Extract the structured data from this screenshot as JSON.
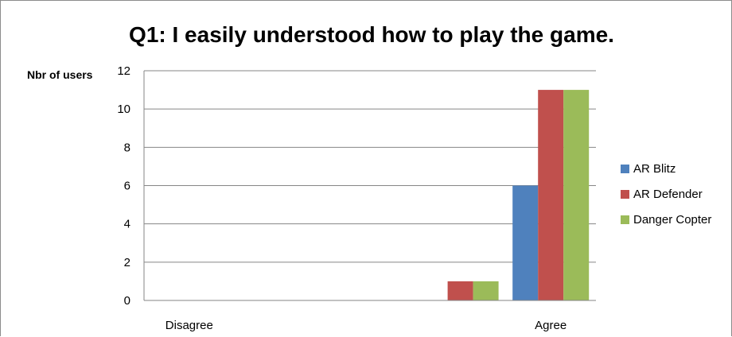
{
  "chart_data": {
    "type": "bar",
    "title": "Q1: I easily understood how to play the game.",
    "ylabel": "Nbr of users",
    "xlabel": "",
    "categories": [
      "Disagree",
      "",
      "",
      "",
      "Agree"
    ],
    "series": [
      {
        "name": "AR Blitz",
        "color": "#4f81bd",
        "values": [
          0,
          0,
          0,
          0,
          6
        ]
      },
      {
        "name": "AR Defender",
        "color": "#c0504d",
        "values": [
          0,
          0,
          0,
          1,
          11
        ]
      },
      {
        "name": "Danger Copter",
        "color": "#9bbb59",
        "values": [
          0,
          0,
          0,
          1,
          11
        ]
      }
    ],
    "ylim": [
      0,
      12
    ],
    "yticks": [
      0,
      2,
      4,
      6,
      8,
      10,
      12
    ],
    "grid": true,
    "legend_position": "right"
  }
}
